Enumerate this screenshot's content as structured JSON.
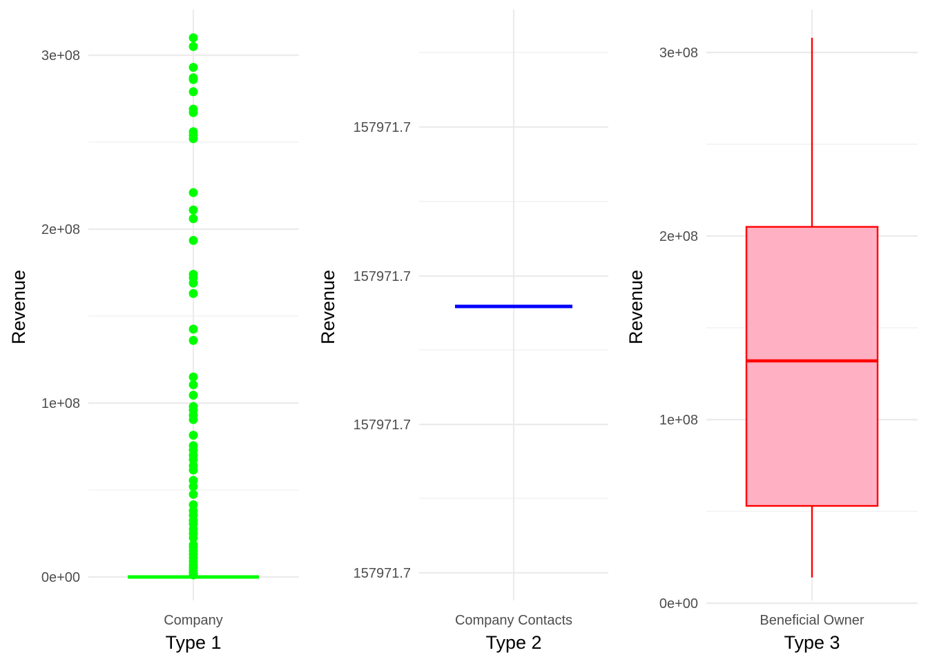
{
  "chart_data": [
    {
      "type": "box",
      "xlabel": "Type 1",
      "ylabel": "Revenue",
      "categories": [
        "Company"
      ],
      "ylim": [
        -15000000,
        325000000
      ],
      "y_ticks": [
        0,
        100000000,
        200000000,
        300000000
      ],
      "y_tick_labels": [
        "0e+00",
        "1e+08",
        "2e+08",
        "3e+08"
      ],
      "grid": true,
      "colors": {
        "box": "#00FF00",
        "outlier": "#00FF00"
      },
      "box": {
        "q1": 0,
        "median": 0,
        "q3": 0,
        "whisker_low": 0,
        "whisker_high": 0
      },
      "outliers": [
        310000000,
        305000000,
        293000000,
        287000000,
        286000000,
        279000000,
        269000000,
        267000000,
        256000000,
        254000000,
        252000000,
        221000000,
        211000000,
        206000000,
        193500000,
        174000000,
        172000000,
        169000000,
        163000000,
        142500000,
        136000000,
        115000000,
        110500000,
        104500000,
        98000000,
        96000000,
        93000000,
        90500000,
        81500000,
        75500000,
        73000000,
        70000000,
        67500000,
        64000000,
        61500000,
        55500000,
        52000000,
        47500000,
        41500000,
        38000000,
        35500000,
        32500000,
        30500000,
        27500000,
        25000000,
        22500000,
        18500000,
        17000000,
        15000000,
        13000000,
        11000000,
        9000000,
        7000000,
        5500000,
        4000000,
        2500000,
        1200000
      ]
    },
    {
      "type": "box",
      "xlabel": "Type 2",
      "ylabel": "Revenue",
      "categories": [
        "Company Contacts"
      ],
      "y_tick_labels": [
        "157971.7",
        "157971.7",
        "157971.7",
        "157971.7"
      ],
      "grid": true,
      "colors": {
        "box": "#0000FF"
      },
      "box": {
        "q1": 157971.7,
        "median": 157971.7,
        "q3": 157971.7,
        "whisker_low": 157971.7,
        "whisker_high": 157971.7
      },
      "outliers": []
    },
    {
      "type": "box",
      "xlabel": "Type 3",
      "ylabel": "Revenue",
      "categories": [
        "Beneficial Owner"
      ],
      "ylim": [
        -15000000,
        322000000
      ],
      "y_ticks": [
        0,
        100000000,
        200000000,
        300000000
      ],
      "y_tick_labels": [
        "0e+00",
        "1e+08",
        "2e+08",
        "3e+08"
      ],
      "grid": true,
      "colors": {
        "box_fill": "#FFB0C2",
        "box_line": "#FF0000"
      },
      "box": {
        "q1": 53000000,
        "median": 132000000,
        "q3": 205000000,
        "whisker_low": 14000000,
        "whisker_high": 308000000
      },
      "outliers": []
    }
  ]
}
